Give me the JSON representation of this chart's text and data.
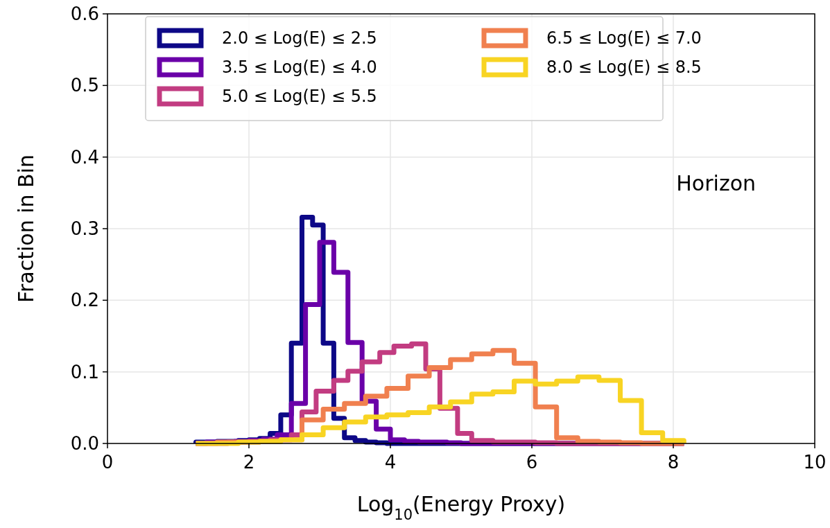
{
  "chart_data": {
    "type": "histogram",
    "xlabel": "Log$_{10}$(Energy Proxy)",
    "ylabel": "Fraction in Bin",
    "xlim": [
      0,
      10
    ],
    "ylim": [
      0,
      0.6
    ],
    "xticks": [
      0,
      2,
      4,
      6,
      8,
      10
    ],
    "yticks": [
      {
        "value": 0,
        "label": "0.0"
      },
      {
        "value": 0.1,
        "label": "0.1"
      },
      {
        "value": 0.2,
        "label": "0.2"
      },
      {
        "value": 0.3,
        "label": "0.3"
      },
      {
        "value": 0.4,
        "label": "0.4"
      },
      {
        "value": 0.5,
        "label": "0.5"
      },
      {
        "value": 0.6,
        "label": "0.6"
      }
    ],
    "grid": true,
    "legend": "top",
    "annotations": [
      "Horizon"
    ],
    "bins": [
      1.25,
      1.4,
      1.55,
      1.6,
      1.7,
      1.8,
      1.85,
      2.0,
      2.15,
      2.2,
      2.3,
      2.4,
      2.45,
      2.6,
      2.75,
      2.8,
      2.9,
      2.95,
      3.0,
      3.05,
      3.2,
      3.35,
      3.4,
      3.5,
      3.6,
      3.65,
      3.8,
      3.85,
      3.95,
      4.0,
      4.05,
      4.2,
      4.25,
      4.3,
      4.4,
      4.5,
      4.55,
      4.6,
      4.7,
      4.8,
      4.85,
      4.95,
      5.0,
      5.15,
      5.45,
      5.75,
      6.05,
      6.35,
      6.65,
      6.95,
      7.25,
      7.55,
      7.85,
      8.15
    ],
    "series": [
      {
        "name": "2.0 ≤ Log(E) ≤ 2.5",
        "color": "#0d0887",
        "values": [
          0.002,
          0.002,
          0.003,
          0.003,
          0.003,
          0.003,
          0.004,
          0.005,
          0.007,
          0.007,
          0.014,
          0.014,
          0.04,
          0.14,
          0.316,
          0.316,
          0.305,
          0.305,
          0.305,
          0.14,
          0.035,
          0.008,
          0.008,
          0.004,
          0.004,
          0.002,
          0.001,
          0.001,
          0,
          0,
          0,
          0,
          0,
          0,
          0,
          0,
          0,
          0,
          0,
          0,
          0,
          0,
          0,
          0,
          0,
          0,
          0,
          0,
          0,
          0,
          0,
          0,
          0
        ]
      },
      {
        "name": "3.5 ≤ Log(E) ≤ 4.0",
        "color": "#6a00a8",
        "values": [
          0,
          0.002,
          0.002,
          0.002,
          0.002,
          0.003,
          0.003,
          0.004,
          0.004,
          0.006,
          0.006,
          0.012,
          0.012,
          0.056,
          0.056,
          0.194,
          0.194,
          0.194,
          0.281,
          0.281,
          0.239,
          0.239,
          0.141,
          0.141,
          0.059,
          0.059,
          0.02,
          0.02,
          0.02,
          0.005,
          0.005,
          0.003,
          0.003,
          0.003,
          0.002,
          0.002,
          0.002,
          0.002,
          0.002,
          0.001,
          0.001,
          0.001,
          0,
          0,
          0,
          0,
          0,
          0,
          0,
          0,
          0,
          0,
          0
        ]
      },
      {
        "name": "5.0 ≤ Log(E) ≤ 5.5",
        "color": "#c23c81",
        "values": [
          0,
          0,
          0,
          0,
          0.002,
          0.002,
          0.002,
          0.003,
          0.003,
          0.003,
          0.005,
          0.005,
          0.005,
          0.012,
          0.044,
          0.044,
          0.044,
          0.073,
          0.073,
          0.073,
          0.088,
          0.088,
          0.101,
          0.101,
          0.114,
          0.114,
          0.114,
          0.127,
          0.127,
          0.127,
          0.136,
          0.136,
          0.136,
          0.139,
          0.139,
          0.104,
          0.104,
          0.104,
          0.049,
          0.049,
          0.049,
          0.014,
          0.014,
          0.004,
          0.002,
          0.002,
          0.001,
          0,
          0,
          0,
          0,
          0,
          0
        ]
      },
      {
        "name": "6.5 ≤ Log(E) ≤ 7.0",
        "color": "#f0804f",
        "values": [
          0,
          0,
          0.002,
          0.002,
          0.002,
          0.002,
          0.002,
          0.002,
          0.003,
          0.003,
          0.003,
          0.003,
          0.005,
          0.005,
          0.033,
          0.033,
          0.033,
          0.033,
          0.033,
          0.048,
          0.048,
          0.056,
          0.056,
          0.056,
          0.056,
          0.066,
          0.066,
          0.066,
          0.077,
          0.077,
          0.077,
          0.077,
          0.094,
          0.094,
          0.094,
          0.094,
          0.106,
          0.106,
          0.106,
          0.106,
          0.117,
          0.117,
          0.117,
          0.125,
          0.13,
          0.112,
          0.051,
          0.008,
          0.003,
          0.002,
          0.001,
          0,
          0
        ]
      },
      {
        "name": "8.0 ≤ Log(E) ≤ 8.5",
        "color": "#f8d423",
        "values": [
          0,
          0,
          0,
          0,
          0,
          0,
          0.002,
          0.002,
          0.003,
          0.003,
          0.003,
          0.003,
          0.005,
          0.005,
          0.012,
          0.012,
          0.012,
          0.012,
          0.012,
          0.022,
          0.022,
          0.03,
          0.03,
          0.03,
          0.03,
          0.037,
          0.037,
          0.037,
          0.04,
          0.04,
          0.04,
          0.04,
          0.043,
          0.043,
          0.043,
          0.043,
          0.051,
          0.051,
          0.051,
          0.051,
          0.058,
          0.058,
          0.058,
          0.069,
          0.072,
          0.087,
          0.083,
          0.087,
          0.093,
          0.088,
          0.06,
          0.015,
          0.004
        ]
      }
    ]
  }
}
